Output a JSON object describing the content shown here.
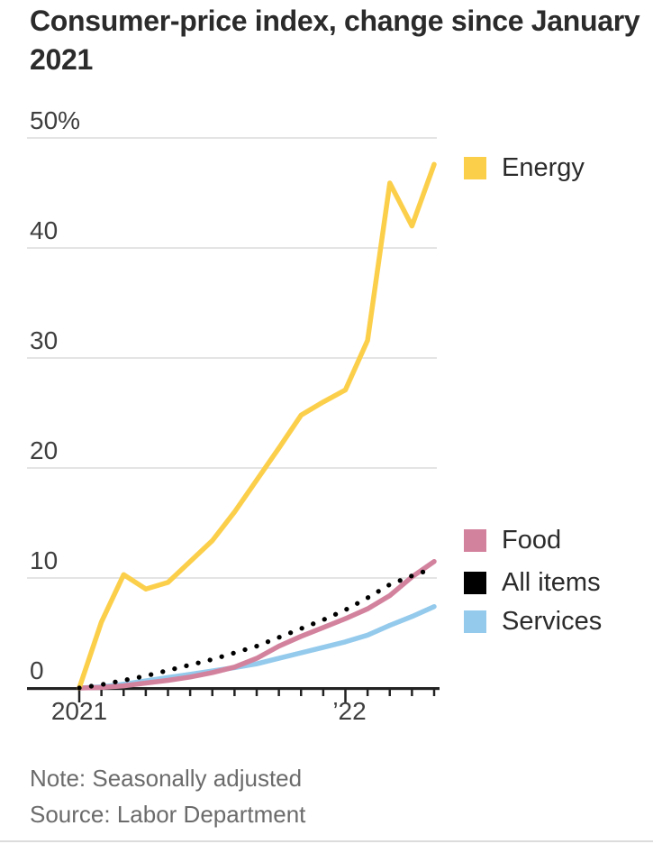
{
  "header": {
    "title": "Consumer-price index, change since January 2021"
  },
  "chart_data": {
    "type": "line",
    "title": "Consumer-price index, change since January 2021",
    "unit": "%",
    "x": [
      "Jan 2021",
      "Feb 2021",
      "Mar 2021",
      "Apr 2021",
      "May 2021",
      "Jun 2021",
      "Jul 2021",
      "Aug 2021",
      "Sep 2021",
      "Oct 2021",
      "Nov 2021",
      "Dec 2021",
      "Jan 2022",
      "Feb 2022",
      "Mar 2022",
      "Apr 2022",
      "May 2022"
    ],
    "ylim": [
      0,
      50
    ],
    "yticks": [
      0,
      10,
      20,
      30,
      40,
      50
    ],
    "ytick_labels": [
      "0",
      "10",
      "20",
      "30",
      "40",
      "50%"
    ],
    "xtick_labels": [
      "2021",
      "’22"
    ],
    "grid": "horizontal-only",
    "legend_position": "right",
    "series": [
      {
        "name": "Energy",
        "color": "#FCCF4B",
        "style": "solid",
        "values": [
          0,
          6.0,
          10.3,
          9.0,
          9.6,
          11.5,
          13.4,
          16.0,
          18.9,
          21.8,
          24.8,
          26.0,
          27.1,
          31.6,
          45.9,
          42.0,
          47.6
        ]
      },
      {
        "name": "Food",
        "color": "#D3829E",
        "style": "solid",
        "values": [
          0,
          0.05,
          0.2,
          0.45,
          0.7,
          1.0,
          1.4,
          1.9,
          2.7,
          3.8,
          4.7,
          5.5,
          6.3,
          7.2,
          8.4,
          10.1,
          11.5
        ]
      },
      {
        "name": "All items",
        "color": "#000000",
        "style": "dotted",
        "values": [
          0,
          0.3,
          0.7,
          1.1,
          1.6,
          2.1,
          2.6,
          3.2,
          3.8,
          4.6,
          5.4,
          6.2,
          7.1,
          8.2,
          9.4,
          10.2,
          10.9
        ]
      },
      {
        "name": "Services",
        "color": "#94CAEC",
        "style": "solid",
        "values": [
          0,
          0.1,
          0.35,
          0.65,
          0.95,
          1.25,
          1.55,
          1.85,
          2.2,
          2.7,
          3.2,
          3.7,
          4.2,
          4.8,
          5.7,
          6.5,
          7.4
        ]
      }
    ]
  },
  "notes": {
    "note": "Note: Seasonally adjusted",
    "source": "Source: Labor Department"
  }
}
